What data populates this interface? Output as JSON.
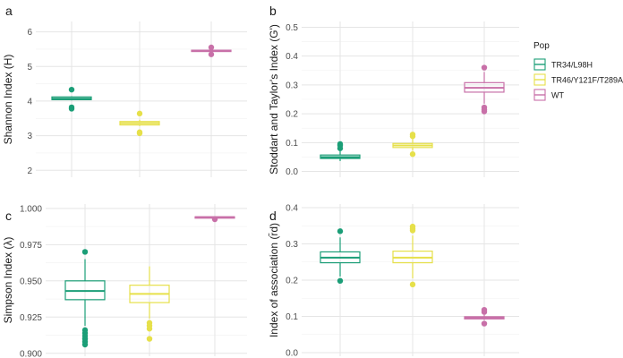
{
  "legend": {
    "title": "Pop",
    "entries": [
      {
        "name": "TR34/L98H",
        "color": "#1b9e77"
      },
      {
        "name": "TR46/Y121F/T289A",
        "color": "#e6e04a"
      },
      {
        "name": "WT",
        "color": "#c870a8"
      }
    ]
  },
  "chart_data": [
    {
      "type": "box",
      "panel_label": "a",
      "title": "",
      "xlabel": "",
      "ylabel": "Shannon Index (H)",
      "ylim": [
        1.8,
        6.3
      ],
      "yticks": [
        2,
        3,
        4,
        5,
        6
      ],
      "ytick_labels": [
        "2",
        "3",
        "4",
        "5",
        "6"
      ],
      "categories": [
        "TR34/L98H",
        "TR46/Y121F/T289A",
        "WT"
      ],
      "boxes": [
        {
          "group": "TR34/L98H",
          "min": 4.02,
          "q1": 4.04,
          "median": 4.07,
          "q3": 4.12,
          "max": 4.14,
          "outliers": [
            4.33,
            3.82,
            3.78
          ]
        },
        {
          "group": "TR46/Y121F/T289A",
          "min": 3.28,
          "q1": 3.31,
          "median": 3.36,
          "q3": 3.41,
          "max": 3.46,
          "outliers": [
            3.64,
            3.07,
            3.1
          ]
        },
        {
          "group": "WT",
          "min": 5.43,
          "q1": 5.44,
          "median": 5.46,
          "q3": 5.47,
          "max": 5.48,
          "outliers": [
            5.55,
            5.35
          ]
        }
      ]
    },
    {
      "type": "box",
      "panel_label": "b",
      "title": "",
      "xlabel": "",
      "ylabel": "Stoddart and Taylor's Index (G')",
      "ylim": [
        -0.02,
        0.52
      ],
      "yticks": [
        0.0,
        0.1,
        0.2,
        0.3,
        0.4,
        0.5
      ],
      "ytick_labels": [
        "0.0",
        "0.1",
        "0.2",
        "0.3",
        "0.4",
        "0.5"
      ],
      "categories": [
        "TR34/L98H",
        "TR46/Y121F/T289A",
        "WT"
      ],
      "boxes": [
        {
          "group": "TR34/L98H",
          "min": 0.036,
          "q1": 0.045,
          "median": 0.05,
          "q3": 0.057,
          "max": 0.07,
          "outliers": [
            0.095,
            0.09,
            0.08
          ]
        },
        {
          "group": "TR46/Y121F/T289A",
          "min": 0.072,
          "q1": 0.083,
          "median": 0.09,
          "q3": 0.097,
          "max": 0.112,
          "outliers": [
            0.128,
            0.122,
            0.06
          ]
        },
        {
          "group": "WT",
          "min": 0.235,
          "q1": 0.275,
          "median": 0.29,
          "q3": 0.308,
          "max": 0.345,
          "outliers": [
            0.36,
            0.222,
            0.215,
            0.208
          ]
        }
      ]
    },
    {
      "type": "box",
      "panel_label": "c",
      "title": "",
      "xlabel": "",
      "ylabel": "Simpson Index (λ)",
      "ylim": [
        0.898,
        1.003
      ],
      "yticks": [
        0.9,
        0.925,
        0.95,
        0.975,
        1.0
      ],
      "ytick_labels": [
        "0.900",
        "0.925",
        "0.950",
        "0.975",
        "1.000"
      ],
      "categories": [
        "TR34/L98H",
        "TR46/Y121F/T289A",
        "WT"
      ],
      "boxes": [
        {
          "group": "TR34/L98H",
          "min": 0.919,
          "q1": 0.937,
          "median": 0.943,
          "q3": 0.95,
          "max": 0.965,
          "outliers": [
            0.97,
            0.916,
            0.914,
            0.912,
            0.91,
            0.908,
            0.906
          ]
        },
        {
          "group": "TR46/Y121F/T289A",
          "min": 0.924,
          "q1": 0.935,
          "median": 0.941,
          "q3": 0.947,
          "max": 0.96,
          "outliers": [
            0.921,
            0.919,
            0.917,
            0.91
          ]
        },
        {
          "group": "WT",
          "min": 0.9935,
          "q1": 0.9938,
          "median": 0.994,
          "q3": 0.9942,
          "max": 0.9945,
          "outliers": [
            0.9925
          ]
        }
      ]
    },
    {
      "type": "box",
      "panel_label": "d",
      "title": "",
      "xlabel": "",
      "ylabel": "Index of association (r̄d)",
      "ylim": [
        -0.01,
        0.41
      ],
      "yticks": [
        0.0,
        0.1,
        0.2,
        0.3,
        0.4
      ],
      "ytick_labels": [
        "0.0",
        "0.1",
        "0.2",
        "0.3",
        "0.4"
      ],
      "categories": [
        "TR34/L98H",
        "TR46/Y121F/T289A",
        "WT"
      ],
      "boxes": [
        {
          "group": "TR34/L98H",
          "min": 0.21,
          "q1": 0.248,
          "median": 0.262,
          "q3": 0.278,
          "max": 0.318,
          "outliers": [
            0.335,
            0.198
          ]
        },
        {
          "group": "TR46/Y121F/T289A",
          "min": 0.205,
          "q1": 0.248,
          "median": 0.262,
          "q3": 0.28,
          "max": 0.323,
          "outliers": [
            0.348,
            0.342,
            0.337,
            0.188
          ]
        },
        {
          "group": "WT",
          "min": 0.09,
          "q1": 0.093,
          "median": 0.096,
          "q3": 0.099,
          "max": 0.104,
          "outliers": [
            0.118,
            0.112,
            0.08
          ]
        }
      ]
    }
  ]
}
